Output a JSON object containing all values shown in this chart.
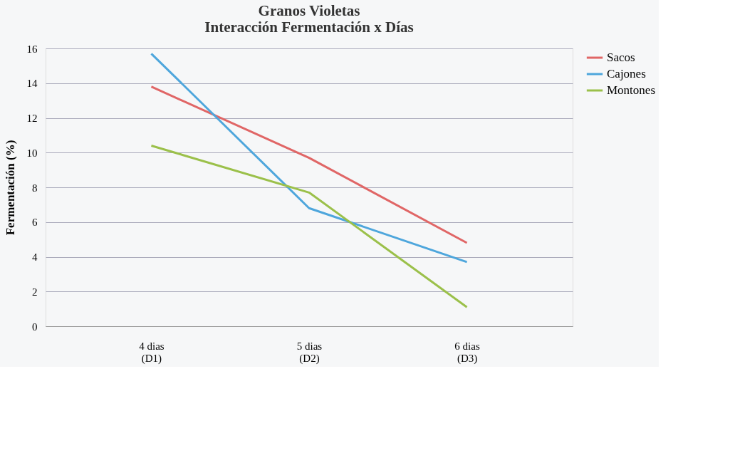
{
  "chart_data": {
    "type": "line",
    "title": "Granos Violetas\nInteracción Fermentación x Días",
    "ylabel": "Fermentación (%)",
    "categories": [
      "4 dias\n(D1)",
      "5 dias\n(D2)",
      "6 dias\n(D3)"
    ],
    "series": [
      {
        "name": "Sacos",
        "color": "#e06666",
        "values": [
          13.8,
          9.7,
          4.8
        ]
      },
      {
        "name": "Cajones",
        "color": "#4ea6dc",
        "values": [
          15.7,
          6.8,
          3.7
        ]
      },
      {
        "name": "Montones",
        "color": "#9bc04a",
        "values": [
          10.4,
          7.7,
          1.1
        ]
      }
    ],
    "ylim": [
      0,
      16
    ],
    "yticks": [
      0,
      2,
      4,
      6,
      8,
      10,
      12,
      14,
      16
    ],
    "grid": "y",
    "legend": "right",
    "marker": "none",
    "line_style": "solid"
  }
}
